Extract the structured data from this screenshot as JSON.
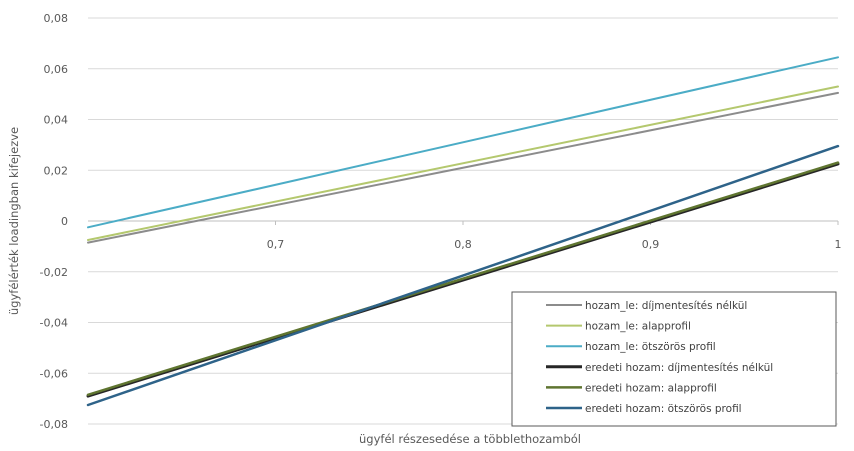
{
  "chart_data": {
    "type": "line",
    "title": "",
    "xlabel": "ügyfél részesedése a többlethozamból",
    "ylabel": "ügyfélérték loadingban kifejezve",
    "xlim": [
      0.6,
      1.0
    ],
    "ylim": [
      -0.08,
      0.08
    ],
    "x_ticks": [
      0.7,
      0.8,
      0.9,
      1.0
    ],
    "x_tick_labels": [
      "0,7",
      "0,8",
      "0,9",
      "1"
    ],
    "y_ticks": [
      -0.08,
      -0.06,
      -0.04,
      -0.02,
      0,
      0.02,
      0.04,
      0.06,
      0.08
    ],
    "y_tick_labels": [
      "-0,08",
      "-0,06",
      "-0,04",
      "-0,02",
      "0",
      "0,02",
      "0,04",
      "0,06",
      "0,08"
    ],
    "x": [
      0.6,
      1.0
    ],
    "series": [
      {
        "name": "hozam_le: díjmentesítés nélkül",
        "values": [
          -0.0085,
          0.0505
        ],
        "color": "#8c8c8c",
        "width": 2
      },
      {
        "name": "hozam_le: alapprofil",
        "values": [
          -0.0075,
          0.053
        ],
        "color": "#b4c86e",
        "width": 2
      },
      {
        "name": "hozam_le: ötszörös profil",
        "values": [
          -0.0025,
          0.0645
        ],
        "color": "#4bacc6",
        "width": 2
      },
      {
        "name": "eredeti hozam: díjmentesítés nélkül",
        "values": [
          -0.069,
          0.0225
        ],
        "color": "#262626",
        "width": 3
      },
      {
        "name": "eredeti hozam: alapprofil",
        "values": [
          -0.0685,
          0.023
        ],
        "color": "#5f7530",
        "width": 2.5
      },
      {
        "name": "eredeti hozam: ötszörös profil",
        "values": [
          -0.0725,
          0.0295
        ],
        "color": "#2e6389",
        "width": 2.5
      }
    ],
    "grid": "horizontal",
    "legend_position": "bottom-right"
  }
}
